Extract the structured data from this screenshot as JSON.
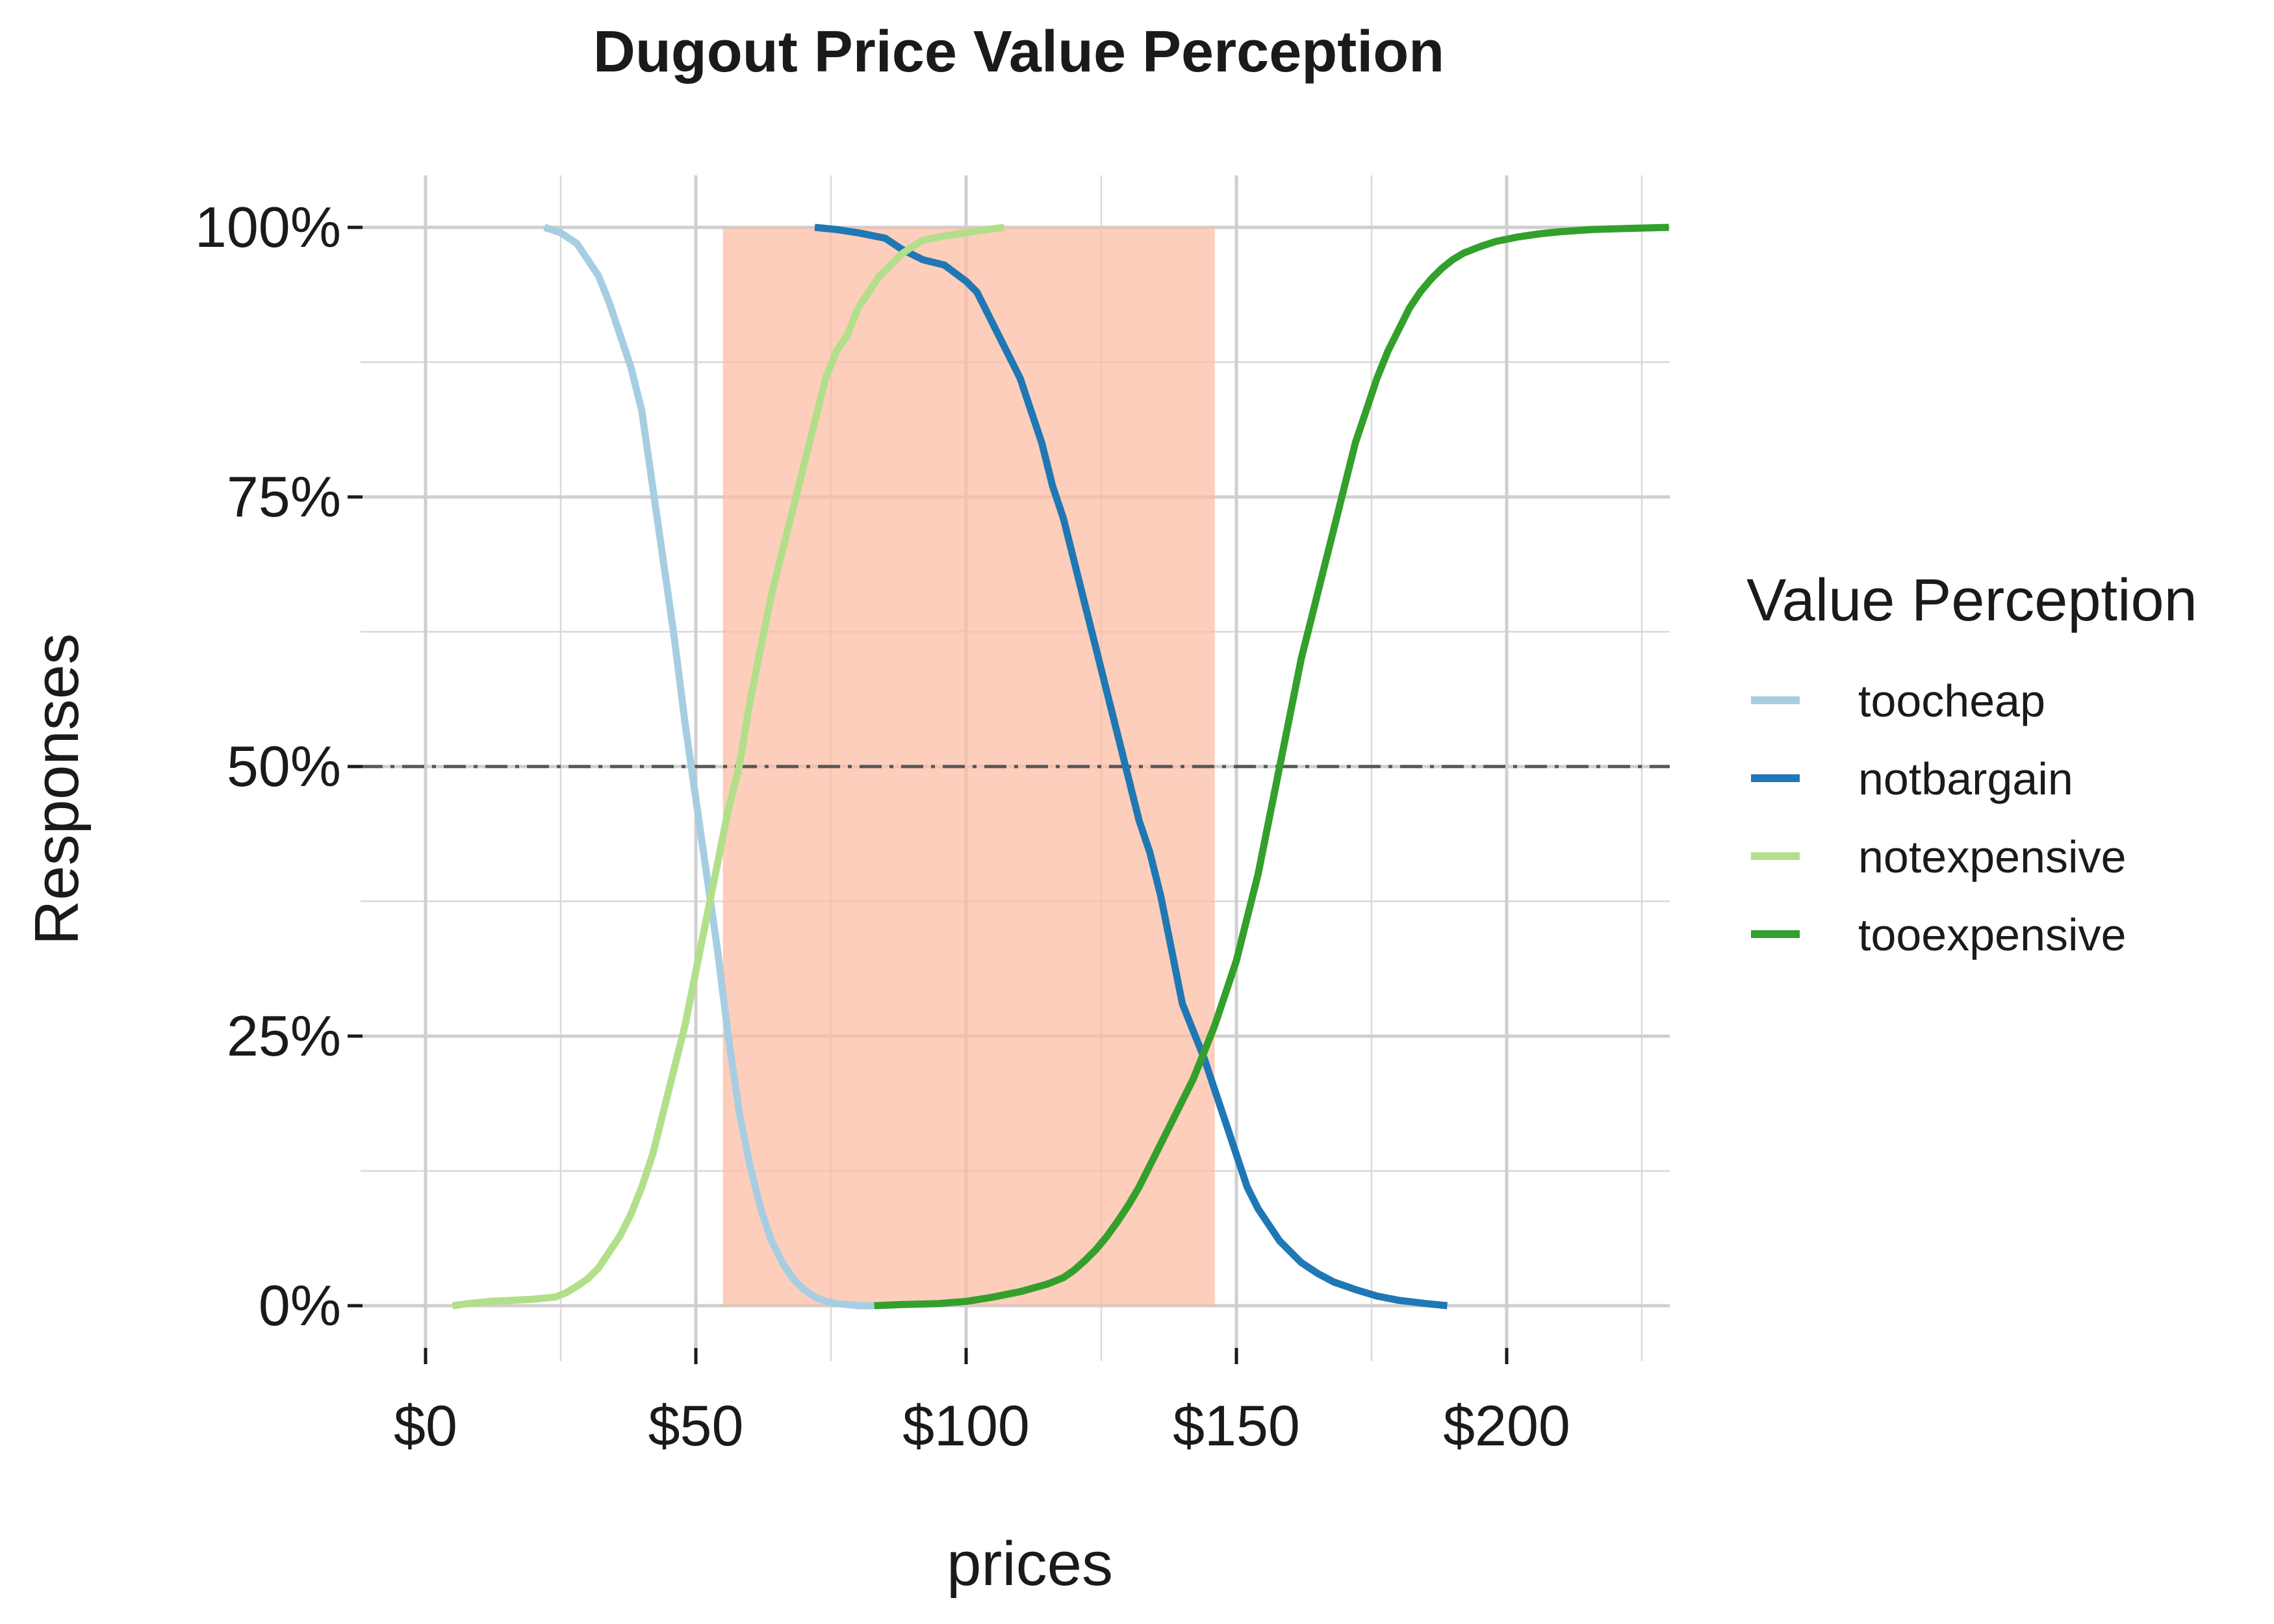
{
  "chart_data": {
    "type": "line",
    "title": "Dugout Price Value Perception",
    "xlabel": "prices",
    "ylabel": "Responses",
    "xlim": [
      -5,
      231
    ],
    "ylim": [
      -0.08,
      1.1
    ],
    "x_ticks": [
      0,
      50,
      100,
      150,
      200
    ],
    "x_tick_labels": [
      "$0",
      "$50",
      "$100",
      "$150",
      "$200"
    ],
    "y_ticks": [
      0,
      0.25,
      0.5,
      0.75,
      1.0
    ],
    "y_tick_labels": [
      "0%",
      "25%",
      "50%",
      "75%",
      "100%"
    ],
    "grid": true,
    "reference_line": {
      "y": 0.5,
      "style": "dash-dot",
      "color": "#555555"
    },
    "highlight_range": {
      "x": [
        55,
        146
      ],
      "color": "#fcbba1"
    },
    "legend_title": "Value Perception",
    "legend_position": "right",
    "series": [
      {
        "name": "toocheap",
        "color": "#a6cee3",
        "x": [
          22,
          25,
          28,
          30,
          32,
          34,
          36,
          38,
          40,
          42,
          44,
          46,
          48,
          50,
          52,
          54,
          56,
          58,
          60,
          62,
          64,
          66,
          68,
          70,
          72,
          74,
          76,
          78,
          80,
          83
        ],
        "y": [
          1.0,
          0.995,
          0.985,
          0.97,
          0.955,
          0.93,
          0.9,
          0.87,
          0.83,
          0.76,
          0.69,
          0.62,
          0.54,
          0.47,
          0.4,
          0.33,
          0.25,
          0.18,
          0.13,
          0.09,
          0.06,
          0.04,
          0.025,
          0.015,
          0.008,
          0.004,
          0.002,
          0.001,
          0.0,
          0.0
        ]
      },
      {
        "name": "notbargain",
        "color": "#1f78b4",
        "x": [
          72,
          76,
          80,
          85,
          88,
          92,
          96,
          100,
          102,
          104,
          106,
          108,
          110,
          112,
          114,
          116,
          118,
          120,
          122,
          124,
          126,
          128,
          130,
          132,
          134,
          136,
          138,
          140,
          142,
          144,
          146,
          148,
          150,
          152,
          154,
          156,
          158,
          160,
          162,
          165,
          168,
          172,
          176,
          180,
          185,
          189
        ],
        "y": [
          1.0,
          0.998,
          0.995,
          0.99,
          0.98,
          0.97,
          0.965,
          0.95,
          0.94,
          0.92,
          0.9,
          0.88,
          0.86,
          0.83,
          0.8,
          0.76,
          0.73,
          0.69,
          0.65,
          0.61,
          0.57,
          0.53,
          0.49,
          0.45,
          0.42,
          0.38,
          0.33,
          0.28,
          0.255,
          0.23,
          0.2,
          0.17,
          0.14,
          0.11,
          0.09,
          0.075,
          0.06,
          0.05,
          0.04,
          0.03,
          0.022,
          0.015,
          0.009,
          0.005,
          0.002,
          0.0
        ]
      },
      {
        "name": "notexpensive",
        "color": "#b2df8a",
        "x": [
          5,
          8,
          12,
          16,
          20,
          24,
          26,
          28,
          30,
          32,
          34,
          36,
          38,
          40,
          42,
          44,
          46,
          48,
          50,
          52,
          54,
          56,
          58,
          60,
          62,
          64,
          66,
          68,
          70,
          72,
          74,
          76,
          78,
          80,
          82,
          84,
          86,
          88,
          90,
          92,
          96,
          100,
          104,
          107
        ],
        "y": [
          0.0,
          0.002,
          0.004,
          0.005,
          0.006,
          0.008,
          0.012,
          0.018,
          0.025,
          0.035,
          0.05,
          0.065,
          0.085,
          0.11,
          0.14,
          0.18,
          0.22,
          0.26,
          0.31,
          0.36,
          0.41,
          0.46,
          0.5,
          0.56,
          0.61,
          0.66,
          0.7,
          0.74,
          0.78,
          0.82,
          0.86,
          0.885,
          0.9,
          0.925,
          0.94,
          0.955,
          0.965,
          0.975,
          0.982,
          0.988,
          0.992,
          0.995,
          0.998,
          1.0
        ]
      },
      {
        "name": "tooexpensive",
        "color": "#33a02c",
        "x": [
          83,
          88,
          95,
          100,
          105,
          110,
          115,
          118,
          120,
          122,
          124,
          126,
          128,
          130,
          132,
          134,
          136,
          138,
          140,
          142,
          144,
          146,
          148,
          150,
          152,
          154,
          156,
          158,
          160,
          162,
          164,
          166,
          168,
          170,
          172,
          174,
          176,
          178,
          180,
          182,
          184,
          186,
          188,
          190,
          192,
          195,
          198,
          202,
          206,
          210,
          216,
          222,
          230
        ],
        "y": [
          0.0,
          0.001,
          0.002,
          0.004,
          0.008,
          0.013,
          0.02,
          0.026,
          0.033,
          0.042,
          0.052,
          0.064,
          0.078,
          0.093,
          0.11,
          0.13,
          0.15,
          0.17,
          0.19,
          0.21,
          0.235,
          0.26,
          0.29,
          0.32,
          0.36,
          0.4,
          0.45,
          0.5,
          0.55,
          0.6,
          0.64,
          0.68,
          0.72,
          0.76,
          0.8,
          0.83,
          0.86,
          0.885,
          0.905,
          0.925,
          0.94,
          0.952,
          0.962,
          0.97,
          0.976,
          0.982,
          0.987,
          0.991,
          0.994,
          0.996,
          0.998,
          0.999,
          1.0
        ]
      }
    ]
  }
}
